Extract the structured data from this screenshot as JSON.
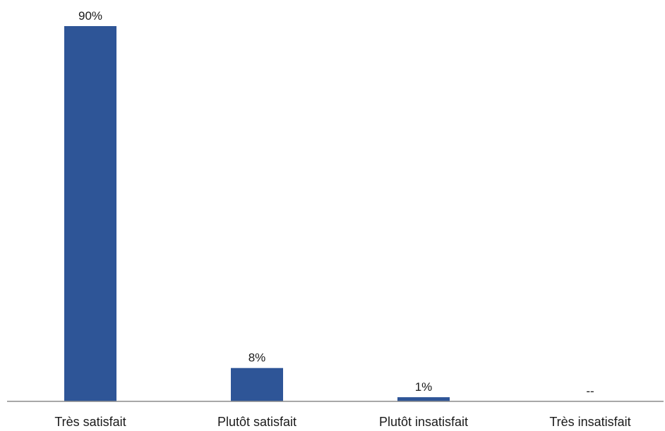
{
  "chart_data": {
    "type": "bar",
    "categories": [
      "Très satisfait",
      "Plutôt satisfait",
      "Plutôt insatisfait",
      "Très insatisfait"
    ],
    "values": [
      90,
      8,
      1,
      0
    ],
    "data_labels": [
      "90%",
      "8%",
      "1%",
      "--"
    ],
    "title": "",
    "xlabel": "",
    "ylabel": "",
    "ylim": [
      0,
      90
    ],
    "grid": false,
    "legend": "none",
    "colors": {
      "bar": "#2E5597",
      "axis": "#8C8C8C",
      "text": "#1A1A1A"
    }
  }
}
